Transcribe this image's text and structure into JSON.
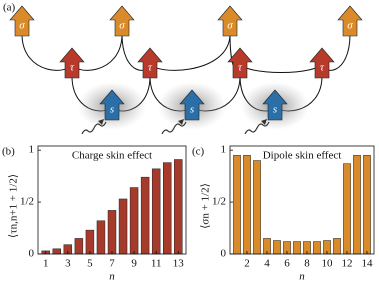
{
  "diagram": {
    "label": "(a)",
    "sigma": [
      "σ",
      "σ",
      "σ",
      "σ"
    ],
    "tau": [
      "τ",
      "τ",
      "τ",
      "τ"
    ],
    "s": [
      "s",
      "s",
      "s"
    ]
  },
  "chart_data": [
    {
      "type": "bar",
      "panel": "(b)",
      "title": "Charge skin effect",
      "x_label": "n",
      "y_label": "⟨τn,n+1 + 1/2⟩",
      "x": [
        1,
        2,
        3,
        4,
        5,
        6,
        7,
        8,
        9,
        10,
        11,
        12,
        13
      ],
      "values": [
        0.03,
        0.05,
        0.09,
        0.15,
        0.23,
        0.32,
        0.42,
        0.53,
        0.64,
        0.74,
        0.82,
        0.88,
        0.91
      ],
      "color": "#a63a2b",
      "xlim": [
        0.3,
        13.7
      ],
      "ylim": [
        0,
        1.04
      ],
      "xticks": [
        1,
        3,
        5,
        7,
        9,
        11,
        13
      ],
      "yticks": [
        0,
        {
          "value": 0.5,
          "label": "1/2"
        },
        1
      ]
    },
    {
      "type": "bar",
      "panel": "(c)",
      "title": "Dipole skin effect",
      "x_label": "n",
      "y_label": "⟨σn + 1/2⟩",
      "x": [
        1,
        2,
        3,
        4,
        5,
        6,
        7,
        8,
        9,
        10,
        11,
        12,
        13,
        14
      ],
      "values": [
        0.95,
        0.95,
        0.9,
        0.15,
        0.13,
        0.12,
        0.12,
        0.12,
        0.12,
        0.13,
        0.15,
        0.87,
        0.95,
        0.95
      ],
      "color": "#d98a2a",
      "xlim": [
        0.3,
        14.7
      ],
      "ylim": [
        0,
        1.04
      ],
      "xticks": [
        2,
        4,
        6,
        8,
        10,
        12,
        14
      ],
      "yticks": [
        0,
        {
          "value": 0.5,
          "label": "1/2"
        },
        1
      ]
    }
  ]
}
